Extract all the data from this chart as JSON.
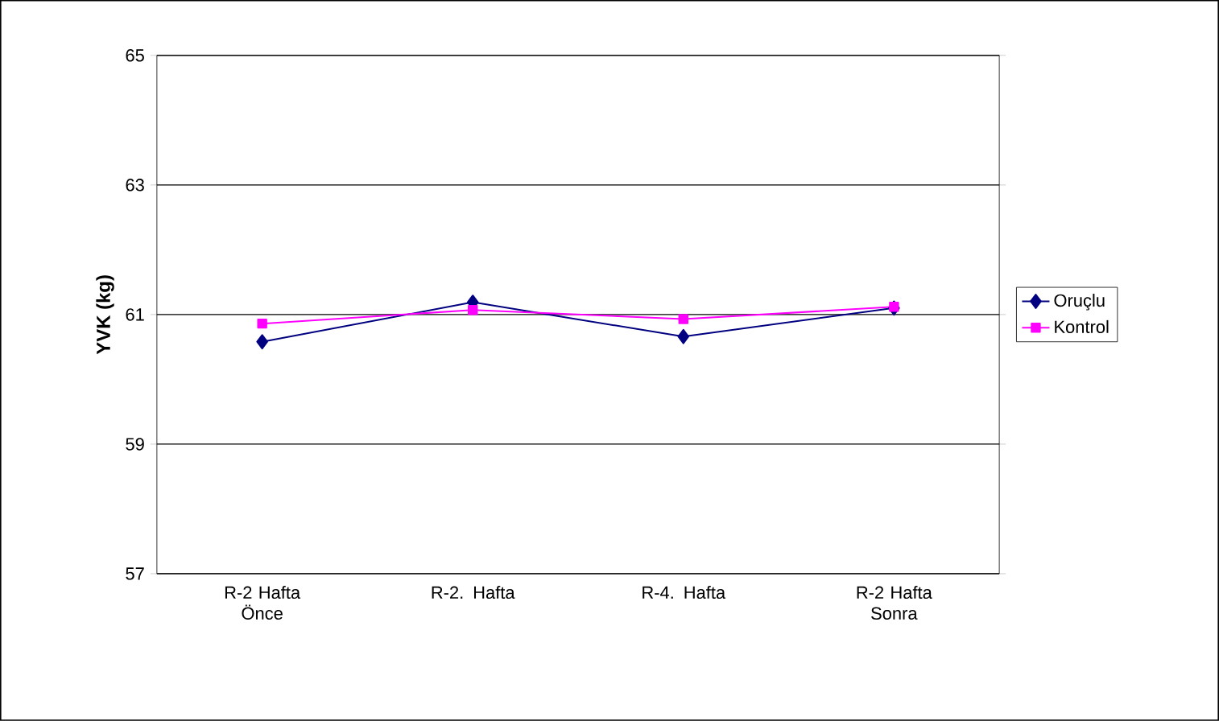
{
  "chart_data": {
    "type": "line",
    "ylabel": "YVK (kg)",
    "categories": [
      "R-2 Hafta Önce",
      "R-2. Hafta",
      "R-4. Hafta",
      "R-2 Hafta Sonra"
    ],
    "series": [
      {
        "name": "Oruçlu",
        "color": "#000080",
        "marker": "diamond",
        "values": [
          60.58,
          61.19,
          60.66,
          61.1
        ]
      },
      {
        "name": "Kontrol",
        "color": "#ff00ff",
        "marker": "square",
        "values": [
          60.86,
          61.07,
          60.93,
          61.12
        ]
      }
    ],
    "ylim": [
      57,
      65
    ],
    "yticks": [
      57,
      59,
      61,
      63,
      65
    ],
    "grid": "y",
    "legend": "right"
  }
}
